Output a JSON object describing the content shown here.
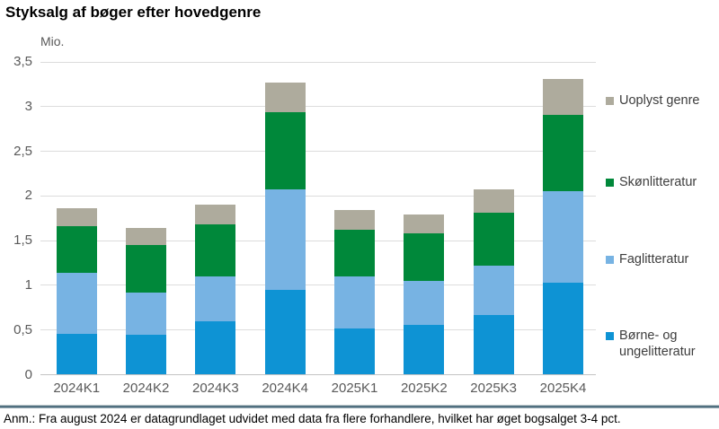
{
  "title": "Styksalg af bøger efter hovedgenre",
  "footnote": "Anm.: Fra august 2024 er datagrundlaget udvidet med data fra flere forhandlere, hvilket har øget bogsalget 3-4 pct.",
  "chart_data": {
    "type": "bar",
    "stacked": true,
    "title": "Styksalg af bøger efter hovedgenre",
    "unit": "Mio.",
    "xlabel": "",
    "ylabel": "Mio.",
    "ylim": [
      0,
      3.5
    ],
    "grid": true,
    "legend_position": "right",
    "categories": [
      "2024K1",
      "2024K2",
      "2024K3",
      "2024K4",
      "2025K1",
      "2025K2",
      "2025K3",
      "2025K4"
    ],
    "series": [
      {
        "name": "Børne- og ungelitteratur",
        "color": "#0e93d4",
        "values": [
          0.46,
          0.45,
          0.6,
          0.95,
          0.52,
          0.56,
          0.67,
          1.03
        ]
      },
      {
        "name": "Faglitteratur",
        "color": "#77b3e3",
        "values": [
          0.68,
          0.47,
          0.5,
          1.12,
          0.58,
          0.49,
          0.55,
          1.02
        ]
      },
      {
        "name": "Skønlitteratur",
        "color": "#00883a",
        "values": [
          0.52,
          0.53,
          0.58,
          0.87,
          0.52,
          0.53,
          0.59,
          0.86
        ]
      },
      {
        "name": "Uoplyst genre",
        "color": "#aeab9d",
        "values": [
          0.2,
          0.19,
          0.22,
          0.33,
          0.22,
          0.21,
          0.26,
          0.4
        ]
      }
    ],
    "totals": [
      1.86,
      1.64,
      1.9,
      3.27,
      1.84,
      1.79,
      2.07,
      3.31
    ],
    "y_ticks": {
      "values": [
        3.5,
        3,
        2.5,
        2,
        1.5,
        1,
        0.5,
        0
      ],
      "labels": [
        "3,5",
        "3",
        "2,5",
        "2",
        "1,5",
        "1",
        "0,5",
        "0"
      ]
    },
    "style": {
      "grid_color": "#dcdcdc",
      "axis_color": "#c4c4c4",
      "tick_label_color": "#595959",
      "legend_text_color": "#3d3d3d",
      "divider_color": "#517080"
    }
  }
}
